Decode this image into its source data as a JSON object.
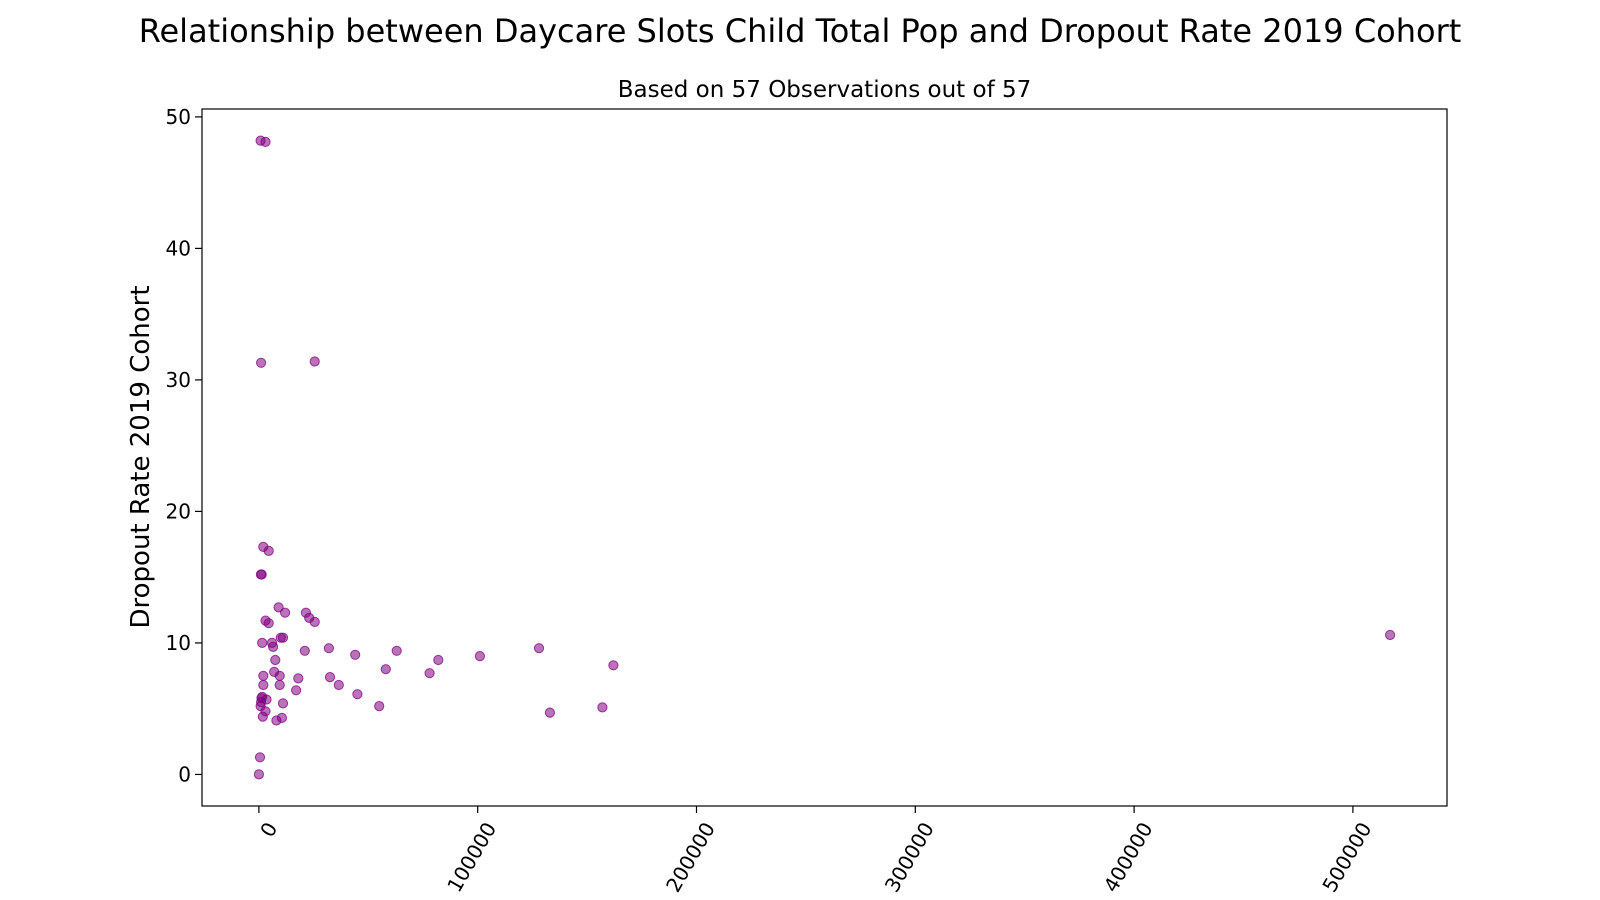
{
  "chart_data": {
    "type": "scatter",
    "title": "Relationship between Daycare Slots Child Total Pop and Dropout Rate 2019 Cohort",
    "subtitle": "Based on 57 Observations out of 57",
    "xlabel": "",
    "ylabel": "Dropout Rate 2019 Cohort",
    "xlim": [
      -26000,
      543000
    ],
    "ylim": [
      -2.4,
      50.6
    ],
    "xticks": [
      0,
      100000,
      200000,
      300000,
      400000,
      500000
    ],
    "xtick_labels": [
      "0",
      "100000",
      "200000",
      "300000",
      "400000",
      "500000"
    ],
    "yticks": [
      0,
      10,
      20,
      30,
      40,
      50
    ],
    "ytick_labels": [
      "0",
      "10",
      "20",
      "30",
      "40",
      "50"
    ],
    "grid": false,
    "marker_color": "#800080",
    "marker_alpha": 0.55,
    "points": [
      [
        0,
        0
      ],
      [
        500,
        1.3
      ],
      [
        800,
        5.2
      ],
      [
        1000,
        5.5
      ],
      [
        1200,
        5.8
      ],
      [
        1500,
        5.9
      ],
      [
        1800,
        4.4
      ],
      [
        2000,
        6.8
      ],
      [
        2000,
        7.5
      ],
      [
        1500,
        10.0
      ],
      [
        900,
        15.2
      ],
      [
        1300,
        15.2
      ],
      [
        1000,
        31.3
      ],
      [
        800,
        48.2
      ],
      [
        3000,
        48.1
      ],
      [
        2000,
        17.3
      ],
      [
        4500,
        17.0
      ],
      [
        3000,
        11.7
      ],
      [
        4500,
        11.5
      ],
      [
        6000,
        10.0
      ],
      [
        6500,
        9.7
      ],
      [
        7500,
        8.7
      ],
      [
        7000,
        7.8
      ],
      [
        9500,
        7.5
      ],
      [
        3500,
        5.7
      ],
      [
        3000,
        4.8
      ],
      [
        8000,
        4.1
      ],
      [
        10500,
        4.3
      ],
      [
        11000,
        5.4
      ],
      [
        9500,
        6.8
      ],
      [
        10000,
        10.4
      ],
      [
        11000,
        10.4
      ],
      [
        9000,
        12.7
      ],
      [
        12000,
        12.3
      ],
      [
        17000,
        6.4
      ],
      [
        18000,
        7.3
      ],
      [
        21000,
        9.4
      ],
      [
        21500,
        12.3
      ],
      [
        23000,
        11.9
      ],
      [
        25500,
        11.6
      ],
      [
        25500,
        31.4
      ],
      [
        32000,
        9.6
      ],
      [
        32500,
        7.4
      ],
      [
        36500,
        6.8
      ],
      [
        44000,
        9.1
      ],
      [
        45000,
        6.1
      ],
      [
        55000,
        5.2
      ],
      [
        58000,
        8.0
      ],
      [
        63000,
        9.4
      ],
      [
        78000,
        7.7
      ],
      [
        82000,
        8.7
      ],
      [
        101000,
        9.0
      ],
      [
        128000,
        9.6
      ],
      [
        133000,
        4.7
      ],
      [
        157000,
        5.1
      ],
      [
        162000,
        8.3
      ],
      [
        517000,
        10.6
      ]
    ]
  }
}
